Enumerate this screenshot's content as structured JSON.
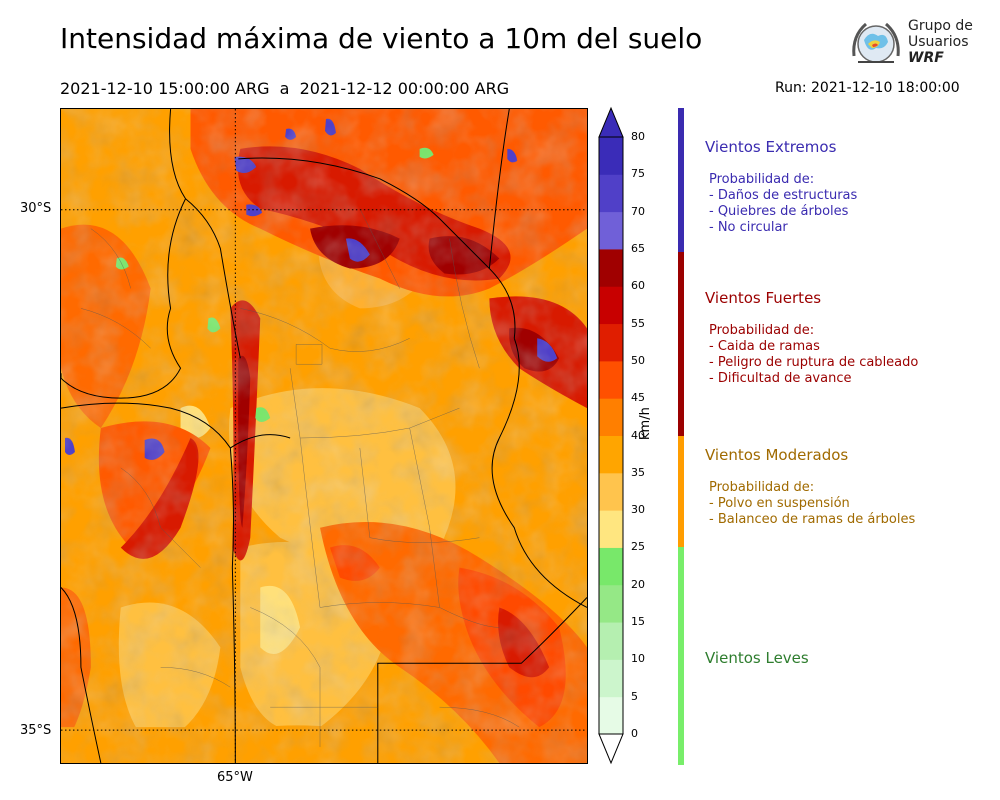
{
  "header": {
    "title": "Intensidad máxima de viento a 10m del suelo",
    "period": "2021-12-10 15:00:00 ARG  a  2021-12-12 00:00:00 ARG",
    "run": "Run: 2021-12-10 18:00:00"
  },
  "logo": {
    "line1": "Grupo de",
    "line2": "Usuarios",
    "line3": "WRF"
  },
  "map": {
    "lat_labels": [
      "30°S",
      "35°S"
    ],
    "lon_labels": [
      "65°W"
    ]
  },
  "colorbar": {
    "unit": "km/h",
    "ticks": [
      "0",
      "5",
      "10",
      "15",
      "20",
      "25",
      "30",
      "35",
      "40",
      "45",
      "50",
      "55",
      "60",
      "65",
      "70",
      "75",
      "80"
    ],
    "colors": [
      "#e6fbe6",
      "#ccf5cc",
      "#b5efb0",
      "#95e886",
      "#78e86a",
      "#ffe680",
      "#ffc44d",
      "#ffa500",
      "#ff7f00",
      "#ff5000",
      "#e01e00",
      "#c80000",
      "#a00000",
      "#7060d8",
      "#5040c8",
      "#3a2cb8"
    ],
    "below_color": "#ffffff",
    "above_color": "#3a2cb8"
  },
  "categories": [
    {
      "title": "Vientos Extremos",
      "color": "#3a2bb0",
      "header": "Probabilidad de:",
      "items": [
        "- Daños de estructuras",
        "- Quiebres de árboles",
        "- No circular"
      ]
    },
    {
      "title": "Vientos Fuertes",
      "color": "#9b0000",
      "header": "Probabilidad de:",
      "items": [
        "- Caida de ramas",
        "- Peligro de ruptura de cableado",
        "- Dificultad de avance"
      ]
    },
    {
      "title": "Vientos Moderados",
      "color": "#a06a00",
      "bar_color": "#ff9d00",
      "header": "Probabilidad de:",
      "items": [
        "- Polvo en suspensión",
        "- Balanceo de ramas de árboles"
      ]
    },
    {
      "title": "Vientos Leves",
      "color": "#2e7d2e",
      "bar_color": "#78ee6a",
      "header": "",
      "items": []
    }
  ]
}
